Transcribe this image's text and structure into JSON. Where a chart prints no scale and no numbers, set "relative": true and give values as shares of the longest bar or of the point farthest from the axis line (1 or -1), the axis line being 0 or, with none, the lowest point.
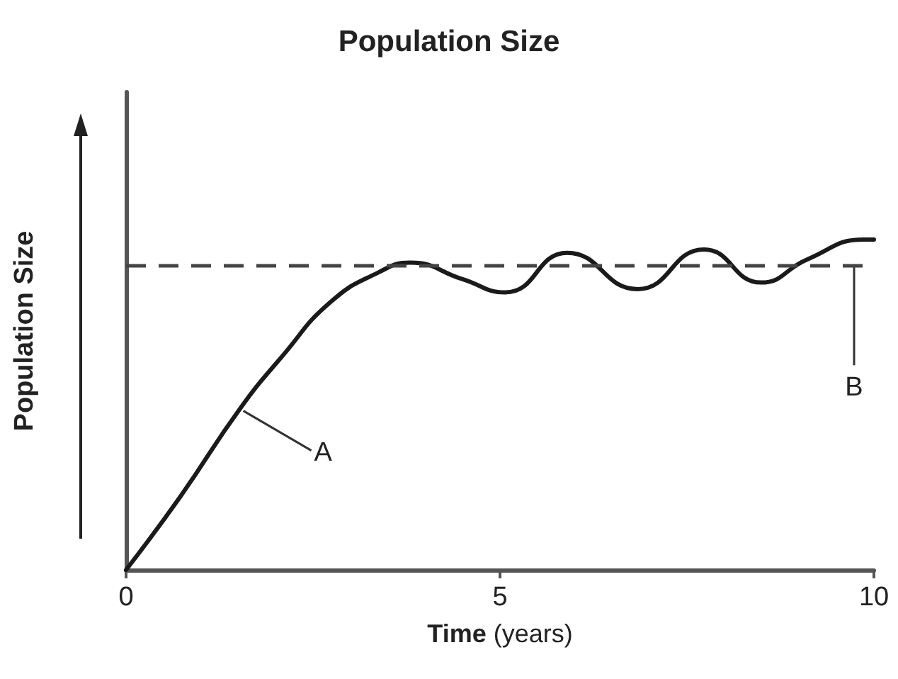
{
  "chart_data": {
    "type": "line",
    "title": "Population Size",
    "xlabel": "Time (years)",
    "ylabel": "Population Size",
    "relative": true,
    "x": [
      0,
      0.72,
      1.53,
      2.1,
      2.73,
      3.37,
      3.8,
      4.5,
      5.07,
      5.9,
      6.84,
      7.73,
      8.49,
      9.11,
      9.87,
      10
    ],
    "series": [
      {
        "color": "#1a1a1a",
        "values": [
          0,
          0.22,
          0.49,
          0.65,
          0.81,
          0.9,
          0.93,
          0.88,
          0.84,
          0.96,
          0.85,
          0.97,
          0.87,
          0.94,
          1,
          1
        ]
      }
    ],
    "xlim": [
      0,
      10
    ],
    "xticks": [
      0,
      5,
      10
    ],
    "ref_lines": [
      {
        "axis": "y",
        "value": 0.92,
        "label": "B",
        "color": "#444444",
        "line_style": "dashed"
      }
    ],
    "annotations": [
      {
        "text": "A",
        "x": 1.53,
        "y": 0.49
      }
    ],
    "grid": false,
    "marker": "none",
    "line_style": "solid"
  }
}
